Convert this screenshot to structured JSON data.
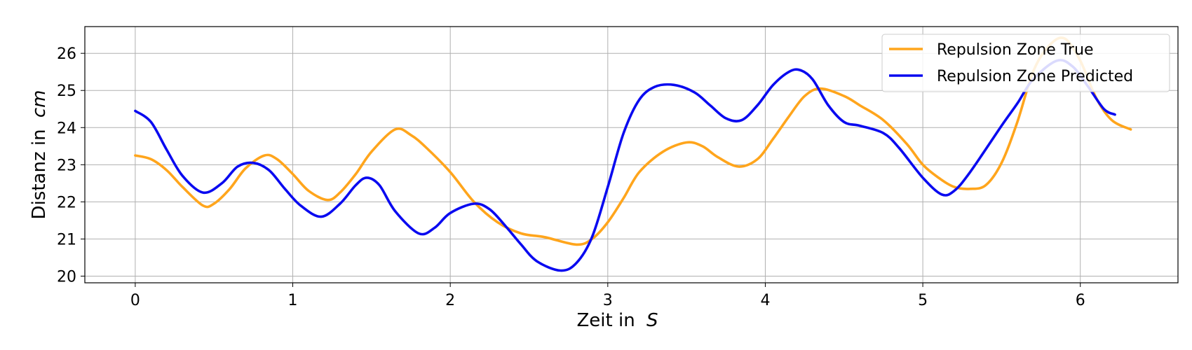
{
  "chart_data": {
    "type": "line",
    "xlabel": "Zeit in",
    "xlabel_unit": "S",
    "ylabel": "Distanz in",
    "ylabel_unit": "cm",
    "xlim": [
      -0.32,
      6.62
    ],
    "ylim": [
      19.82,
      26.72
    ],
    "x_ticks": [
      0,
      1,
      2,
      3,
      4,
      5,
      6
    ],
    "y_ticks": [
      20,
      21,
      22,
      23,
      24,
      25,
      26
    ],
    "grid": true,
    "legend_position": "top-right",
    "series": [
      {
        "name": "Repulsion Zone True",
        "color": "#ffa51c",
        "x": [
          0,
          0.1,
          0.2,
          0.3,
          0.43,
          0.5,
          0.6,
          0.7,
          0.82,
          0.9,
          1.0,
          1.1,
          1.22,
          1.3,
          1.4,
          1.5,
          1.65,
          1.75,
          1.85,
          2.0,
          2.15,
          2.3,
          2.45,
          2.6,
          2.8,
          2.9,
          3.0,
          3.1,
          3.2,
          3.35,
          3.5,
          3.6,
          3.7,
          3.83,
          3.95,
          4.05,
          4.15,
          4.25,
          4.35,
          4.5,
          4.6,
          4.75,
          4.9,
          5.0,
          5.1,
          5.2,
          5.3,
          5.4,
          5.5,
          5.6,
          5.7,
          5.8,
          5.9,
          6.0,
          6.1,
          6.2,
          6.32
        ],
        "values": [
          23.25,
          23.15,
          22.85,
          22.4,
          21.9,
          21.95,
          22.35,
          22.9,
          23.25,
          23.15,
          22.75,
          22.3,
          22.05,
          22.25,
          22.75,
          23.35,
          23.95,
          23.8,
          23.45,
          22.8,
          22.0,
          21.45,
          21.15,
          21.05,
          20.85,
          21.0,
          21.45,
          22.1,
          22.8,
          23.35,
          23.6,
          23.5,
          23.2,
          22.95,
          23.15,
          23.7,
          24.3,
          24.85,
          25.05,
          24.85,
          24.6,
          24.2,
          23.55,
          23.0,
          22.65,
          22.4,
          22.35,
          22.45,
          23.05,
          24.15,
          25.5,
          26.2,
          26.4,
          25.8,
          24.8,
          24.2,
          23.95
        ]
      },
      {
        "name": "Repulsion Zone Predicted",
        "color": "#0a0af0",
        "x": [
          0,
          0.1,
          0.2,
          0.3,
          0.43,
          0.55,
          0.65,
          0.75,
          0.85,
          0.95,
          1.05,
          1.18,
          1.3,
          1.4,
          1.47,
          1.55,
          1.65,
          1.8,
          1.9,
          2.0,
          2.15,
          2.25,
          2.35,
          2.45,
          2.55,
          2.7,
          2.8,
          2.9,
          3.0,
          3.1,
          3.2,
          3.3,
          3.42,
          3.55,
          3.65,
          3.75,
          3.85,
          3.95,
          4.05,
          4.15,
          4.22,
          4.3,
          4.4,
          4.5,
          4.6,
          4.75,
          4.85,
          5.0,
          5.12,
          5.2,
          5.3,
          5.5,
          5.6,
          5.7,
          5.85,
          5.95,
          6.05,
          6.15,
          6.22
        ],
        "values": [
          24.45,
          24.15,
          23.4,
          22.7,
          22.25,
          22.5,
          22.95,
          23.05,
          22.85,
          22.35,
          21.9,
          21.6,
          21.95,
          22.45,
          22.65,
          22.45,
          21.75,
          21.15,
          21.3,
          21.7,
          21.95,
          21.8,
          21.35,
          20.85,
          20.4,
          20.15,
          20.35,
          21.05,
          22.4,
          23.85,
          24.75,
          25.1,
          25.15,
          24.95,
          24.6,
          24.25,
          24.2,
          24.6,
          25.15,
          25.5,
          25.55,
          25.3,
          24.6,
          24.15,
          24.05,
          23.85,
          23.45,
          22.65,
          22.2,
          22.3,
          22.8,
          24.05,
          24.65,
          25.3,
          25.8,
          25.65,
          25.1,
          24.5,
          24.35
        ]
      }
    ]
  }
}
